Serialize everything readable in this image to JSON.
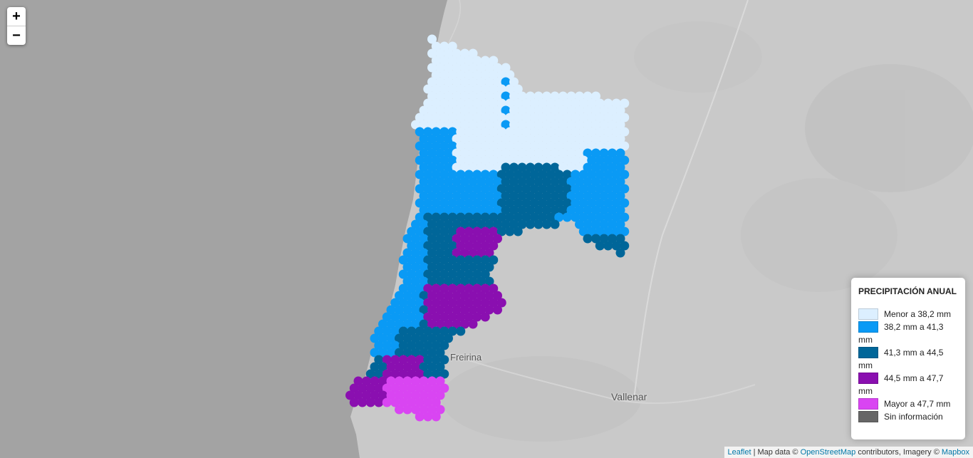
{
  "zoom": {
    "in_label": "+",
    "out_label": "−"
  },
  "places": [
    {
      "name": "Freirina"
    },
    {
      "name": "Vallenar"
    }
  ],
  "legend": {
    "title": "PRECIPITACIÓN ANUAL",
    "items": [
      {
        "label": "Menor a 38,2 mm",
        "color": "#dcefff"
      },
      {
        "label": "38,2 mm a 41,3 mm",
        "color": "#0a9af5"
      },
      {
        "label": "41,3 mm a 44,5 mm",
        "color": "#006699"
      },
      {
        "label": "44,5 mm a 47,7 mm",
        "color": "#8a0fb0"
      },
      {
        "label": "Mayor a 47,7 mm",
        "color": "#d945f2"
      },
      {
        "label": "Sin información",
        "color": "#666666"
      }
    ]
  },
  "attribution": {
    "leaflet": "Leaflet",
    "sep": " | Map data © ",
    "osm": "OpenStreetMap",
    "mid": " contributors, Imagery © ",
    "mapbox": "Mapbox"
  }
}
